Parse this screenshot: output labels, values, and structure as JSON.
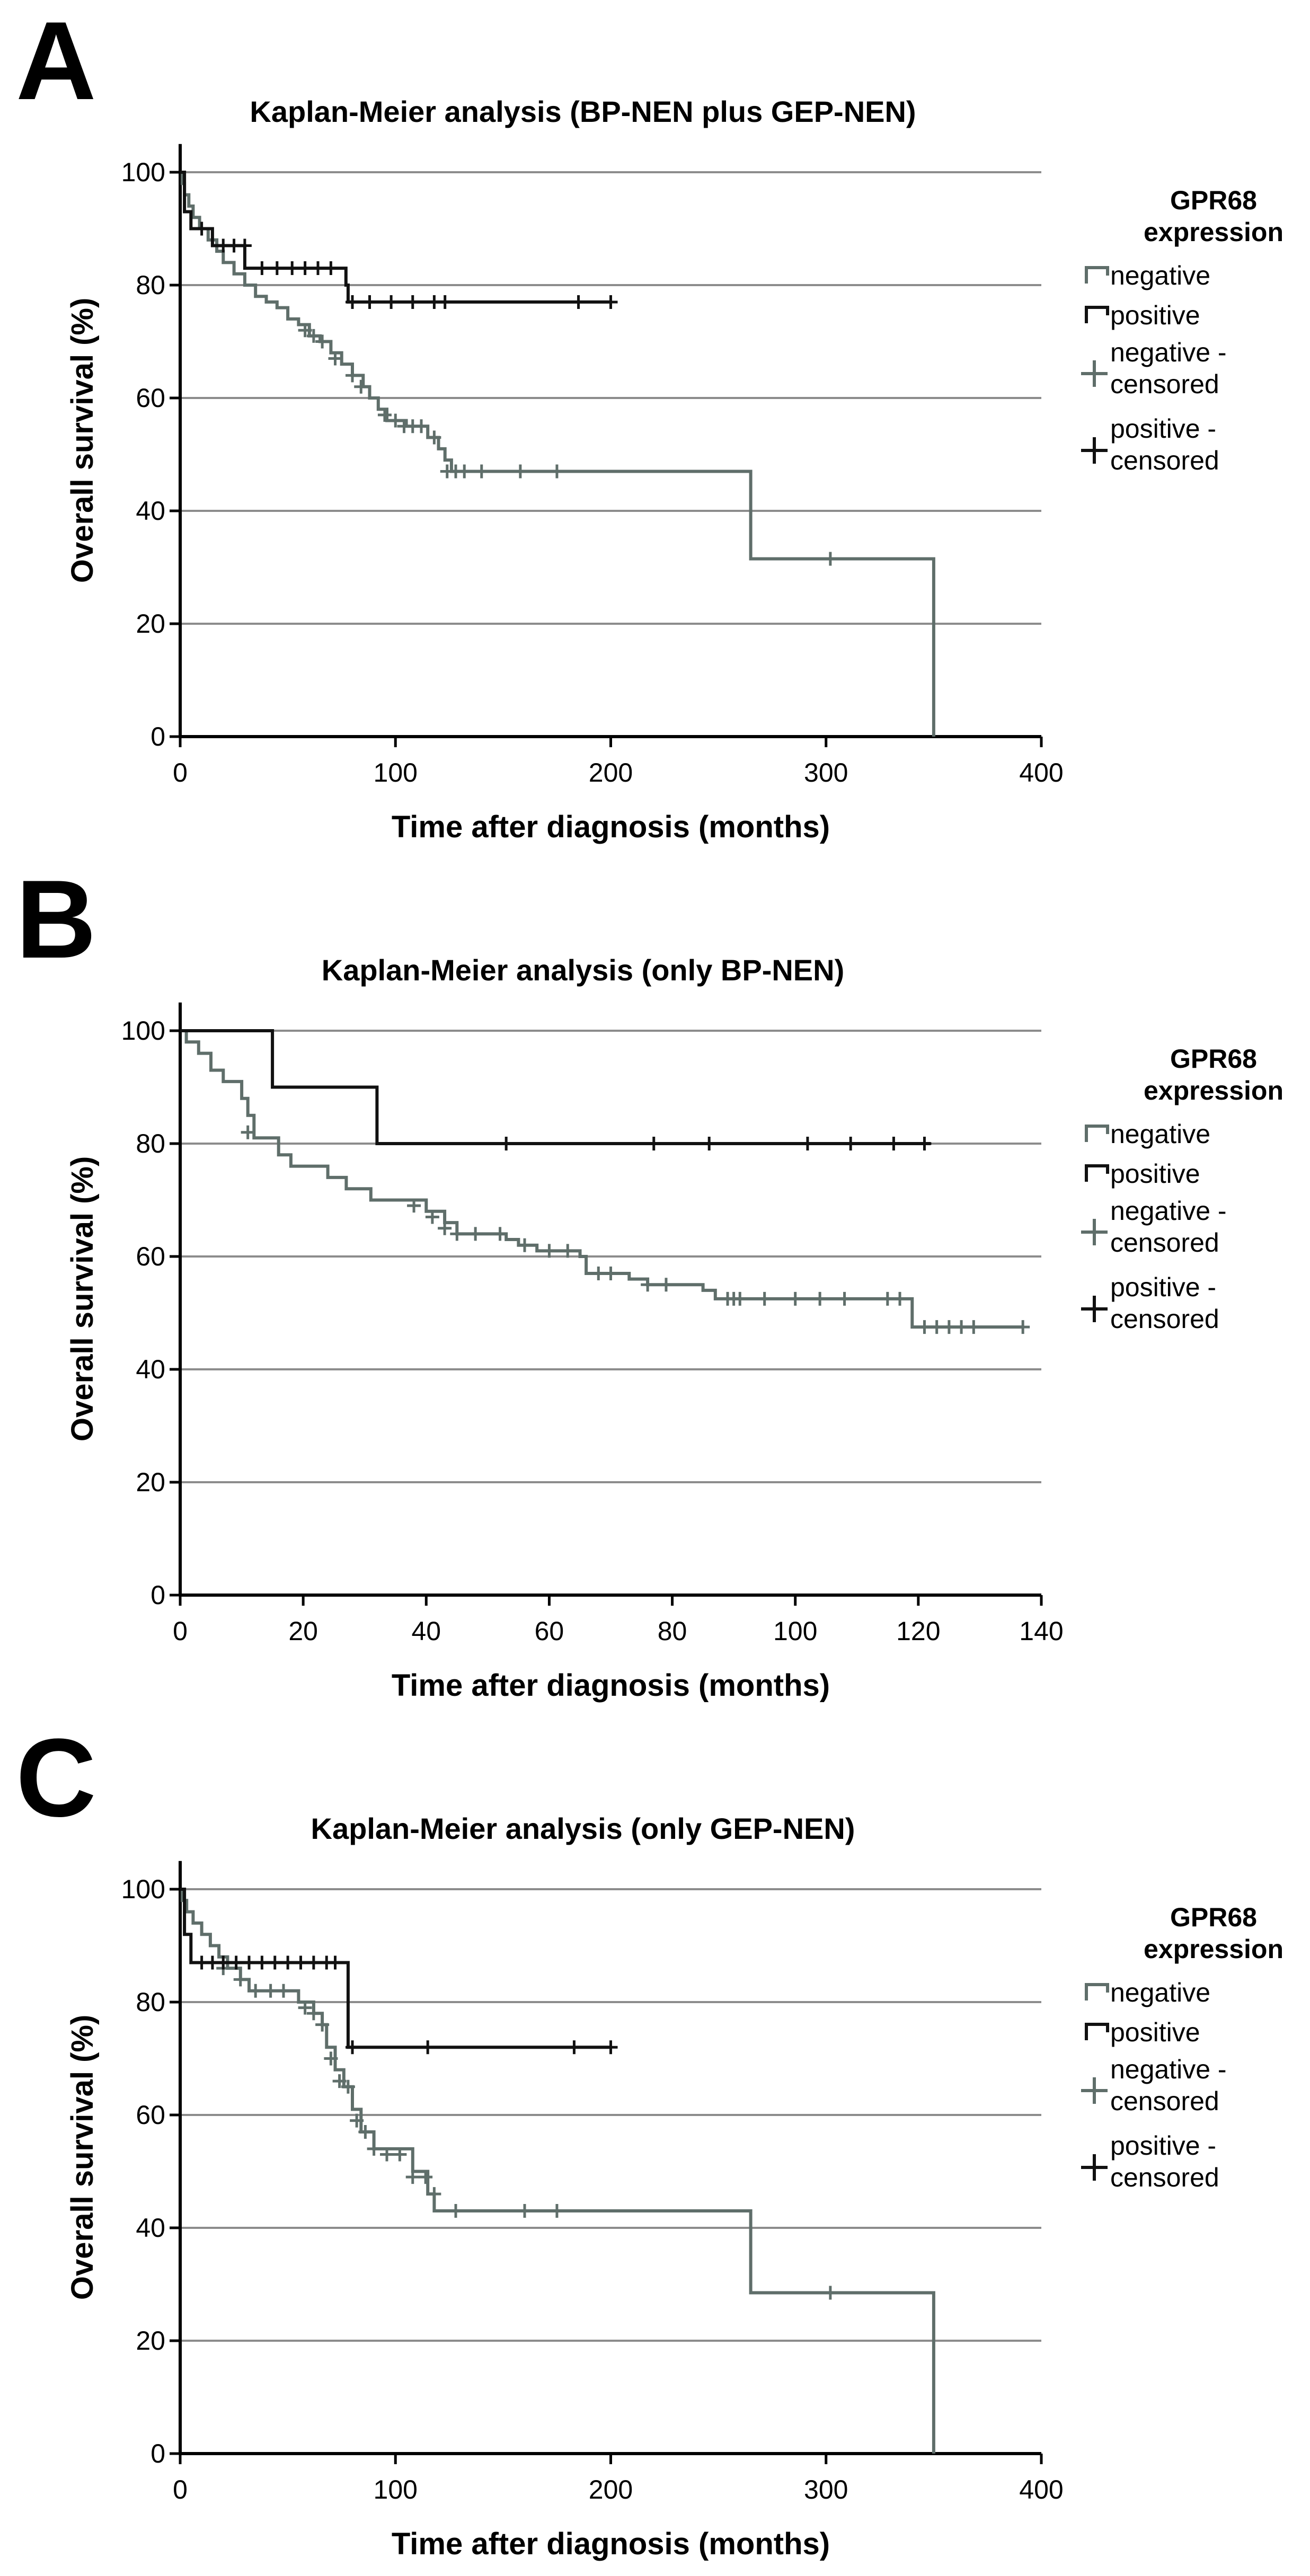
{
  "colors": {
    "negative": "#5f6e6a",
    "positive": "#111111",
    "grid": "#8c8c8c",
    "axis": "#000000"
  },
  "chart_data": [
    {
      "type": "line",
      "panel_label": "A",
      "title": "Kaplan-Meier analysis (BP-NEN plus GEP-NEN)",
      "xlabel": "Time after diagnosis (months)",
      "ylabel": "Overall survival (%)",
      "xlim": [
        0,
        400
      ],
      "ylim": [
        0,
        105
      ],
      "xticks": [
        0,
        100,
        200,
        300,
        400
      ],
      "yticks": [
        0,
        20,
        40,
        60,
        80,
        100
      ],
      "legend": {
        "title_line1": "GPR68",
        "title_line2": "expression",
        "negative": "negative",
        "positive": "positive",
        "negative_censored_1": "negative -",
        "negative_censored_2": "censored",
        "positive_censored_1": "positive -",
        "positive_censored_2": "censored"
      },
      "series": [
        {
          "name": "negative",
          "steps": [
            [
              0,
              100
            ],
            [
              1,
              98
            ],
            [
              2,
              96
            ],
            [
              4,
              94
            ],
            [
              6,
              92
            ],
            [
              9,
              90
            ],
            [
              13,
              88
            ],
            [
              17,
              86
            ],
            [
              20,
              84
            ],
            [
              25,
              82
            ],
            [
              30,
              80
            ],
            [
              35,
              78
            ],
            [
              40,
              77
            ],
            [
              45,
              76
            ],
            [
              50,
              74
            ],
            [
              55,
              73
            ],
            [
              60,
              71
            ],
            [
              65,
              70
            ],
            [
              70,
              68
            ],
            [
              75,
              66
            ],
            [
              80,
              64
            ],
            [
              85,
              62
            ],
            [
              88,
              60
            ],
            [
              92,
              58
            ],
            [
              96,
              56
            ],
            [
              105,
              55
            ],
            [
              115,
              53
            ],
            [
              120,
              51
            ],
            [
              123,
              49
            ],
            [
              126,
              47
            ],
            [
              265,
              47
            ],
            [
              265,
              31.5
            ],
            [
              350,
              31.5
            ],
            [
              350,
              0
            ]
          ],
          "end": 350,
          "censored": [
            [
              58,
              72
            ],
            [
              62,
              71
            ],
            [
              66,
              70
            ],
            [
              72,
              67
            ],
            [
              80,
              64
            ],
            [
              84,
              62
            ],
            [
              95,
              57
            ],
            [
              100,
              56
            ],
            [
              104,
              55
            ],
            [
              108,
              55
            ],
            [
              112,
              55
            ],
            [
              118,
              53
            ],
            [
              124,
              47
            ],
            [
              128,
              47
            ],
            [
              132,
              47
            ],
            [
              140,
              47
            ],
            [
              158,
              47
            ],
            [
              175,
              47
            ],
            [
              302,
              31.5
            ]
          ]
        },
        {
          "name": "positive",
          "steps": [
            [
              0,
              100
            ],
            [
              2,
              93
            ],
            [
              5,
              90
            ],
            [
              15,
              87
            ],
            [
              30,
              83
            ],
            [
              77,
              80
            ],
            [
              78,
              77
            ],
            [
              200,
              77
            ]
          ],
          "end": 200,
          "censored": [
            [
              10,
              90
            ],
            [
              20,
              87
            ],
            [
              25,
              87
            ],
            [
              30,
              87
            ],
            [
              38,
              83
            ],
            [
              45,
              83
            ],
            [
              52,
              83
            ],
            [
              58,
              83
            ],
            [
              64,
              83
            ],
            [
              70,
              83
            ],
            [
              80,
              77
            ],
            [
              88,
              77
            ],
            [
              98,
              77
            ],
            [
              108,
              77
            ],
            [
              118,
              77
            ],
            [
              123,
              77
            ],
            [
              185,
              77
            ],
            [
              200,
              77
            ]
          ]
        }
      ]
    },
    {
      "type": "line",
      "panel_label": "B",
      "title": "Kaplan-Meier analysis (only BP-NEN)",
      "xlabel": "Time after diagnosis (months)",
      "ylabel": "Overall survival (%)",
      "xlim": [
        0,
        140
      ],
      "ylim": [
        0,
        105
      ],
      "xticks": [
        0,
        20,
        40,
        60,
        80,
        100,
        120,
        140
      ],
      "yticks": [
        0,
        20,
        40,
        60,
        80,
        100
      ],
      "legend": {
        "title_line1": "GPR68",
        "title_line2": "expression",
        "negative": "negative",
        "positive": "positive",
        "negative_censored_1": "negative -",
        "negative_censored_2": "censored",
        "positive_censored_1": "positive -",
        "positive_censored_2": "censored"
      },
      "series": [
        {
          "name": "negative",
          "steps": [
            [
              0,
              100
            ],
            [
              1,
              98
            ],
            [
              3,
              96
            ],
            [
              5,
              93
            ],
            [
              7,
              91
            ],
            [
              10,
              88
            ],
            [
              11,
              85
            ],
            [
              12,
              81
            ],
            [
              16,
              78
            ],
            [
              18,
              76
            ],
            [
              24,
              74
            ],
            [
              27,
              72
            ],
            [
              31,
              70
            ],
            [
              40,
              68
            ],
            [
              43,
              66
            ],
            [
              45,
              64
            ],
            [
              53,
              63
            ],
            [
              55,
              62
            ],
            [
              58,
              61
            ],
            [
              65,
              60
            ],
            [
              66,
              57
            ],
            [
              73,
              56
            ],
            [
              76,
              55
            ],
            [
              85,
              54
            ],
            [
              87,
              52.5
            ],
            [
              119,
              52.5
            ],
            [
              119,
              47.5
            ],
            [
              137,
              47.5
            ]
          ],
          "end": 137,
          "censored": [
            [
              11,
              82
            ],
            [
              38,
              69
            ],
            [
              41,
              67
            ],
            [
              43,
              65
            ],
            [
              45,
              64
            ],
            [
              48,
              64
            ],
            [
              52,
              64
            ],
            [
              56,
              62
            ],
            [
              60,
              61
            ],
            [
              63,
              61
            ],
            [
              68,
              57
            ],
            [
              70,
              57
            ],
            [
              76,
              55
            ],
            [
              79,
              55
            ],
            [
              89,
              52.5
            ],
            [
              90,
              52.5
            ],
            [
              91,
              52.5
            ],
            [
              95,
              52.5
            ],
            [
              100,
              52.5
            ],
            [
              104,
              52.5
            ],
            [
              108,
              52.5
            ],
            [
              115,
              52.5
            ],
            [
              117,
              52.5
            ],
            [
              121,
              47.5
            ],
            [
              123,
              47.5
            ],
            [
              125,
              47.5
            ],
            [
              127,
              47.5
            ],
            [
              129,
              47.5
            ],
            [
              137,
              47.5
            ]
          ]
        },
        {
          "name": "positive",
          "steps": [
            [
              0,
              100
            ],
            [
              15,
              100
            ],
            [
              15,
              90
            ],
            [
              32,
              90
            ],
            [
              32,
              80
            ],
            [
              122,
              80
            ]
          ],
          "end": 122,
          "censored": [
            [
              53,
              80
            ],
            [
              77,
              80
            ],
            [
              86,
              80
            ],
            [
              102,
              80
            ],
            [
              109,
              80
            ],
            [
              116,
              80
            ],
            [
              121,
              80
            ]
          ]
        }
      ]
    },
    {
      "type": "line",
      "panel_label": "C",
      "title": "Kaplan-Meier analysis (only GEP-NEN)",
      "xlabel": "Time after diagnosis (months)",
      "ylabel": "Overall survival (%)",
      "xlim": [
        0,
        400
      ],
      "ylim": [
        0,
        105
      ],
      "xticks": [
        0,
        100,
        200,
        300,
        400
      ],
      "yticks": [
        0,
        20,
        40,
        60,
        80,
        100
      ],
      "legend": {
        "title_line1": "GPR68",
        "title_line2": "expression",
        "negative": "negative",
        "positive": "positive",
        "negative_censored_1": "negative -",
        "negative_censored_2": "censored",
        "positive_censored_1": "positive -",
        "positive_censored_2": "censored"
      },
      "series": [
        {
          "name": "negative",
          "steps": [
            [
              0,
              100
            ],
            [
              1,
              98
            ],
            [
              3,
              96
            ],
            [
              6,
              94
            ],
            [
              10,
              92
            ],
            [
              14,
              90
            ],
            [
              18,
              88
            ],
            [
              22,
              86
            ],
            [
              28,
              84
            ],
            [
              32,
              82
            ],
            [
              50,
              82
            ],
            [
              55,
              80
            ],
            [
              62,
              78
            ],
            [
              66,
              76
            ],
            [
              68,
              72
            ],
            [
              72,
              68
            ],
            [
              76,
              65
            ],
            [
              80,
              61
            ],
            [
              84,
              57
            ],
            [
              90,
              54
            ],
            [
              106,
              54
            ],
            [
              108,
              50
            ],
            [
              115,
              46
            ],
            [
              118,
              43
            ],
            [
              265,
              43
            ],
            [
              265,
              28.5
            ],
            [
              350,
              28.5
            ],
            [
              350,
              0
            ]
          ],
          "end": 350,
          "censored": [
            [
              20,
              86
            ],
            [
              28,
              84
            ],
            [
              35,
              82
            ],
            [
              42,
              82
            ],
            [
              48,
              82
            ],
            [
              58,
              79
            ],
            [
              62,
              78
            ],
            [
              66,
              76
            ],
            [
              70,
              70
            ],
            [
              74,
              66
            ],
            [
              78,
              65
            ],
            [
              82,
              59
            ],
            [
              86,
              57
            ],
            [
              90,
              54
            ],
            [
              96,
              53
            ],
            [
              102,
              53
            ],
            [
              108,
              49
            ],
            [
              114,
              49
            ],
            [
              118,
              46
            ],
            [
              128,
              43
            ],
            [
              160,
              43
            ],
            [
              175,
              43
            ],
            [
              302,
              28.5
            ]
          ]
        },
        {
          "name": "positive",
          "steps": [
            [
              0,
              100
            ],
            [
              2,
              92
            ],
            [
              5,
              87
            ],
            [
              78,
              87
            ],
            [
              78,
              72
            ],
            [
              200,
              72
            ]
          ],
          "end": 200,
          "censored": [
            [
              10,
              87
            ],
            [
              15,
              87
            ],
            [
              20,
              87
            ],
            [
              26,
              87
            ],
            [
              32,
              87
            ],
            [
              38,
              87
            ],
            [
              44,
              87
            ],
            [
              50,
              87
            ],
            [
              56,
              87
            ],
            [
              62,
              87
            ],
            [
              68,
              87
            ],
            [
              72,
              87
            ],
            [
              80,
              72
            ],
            [
              115,
              72
            ],
            [
              183,
              72
            ],
            [
              200,
              72
            ]
          ]
        }
      ]
    }
  ]
}
